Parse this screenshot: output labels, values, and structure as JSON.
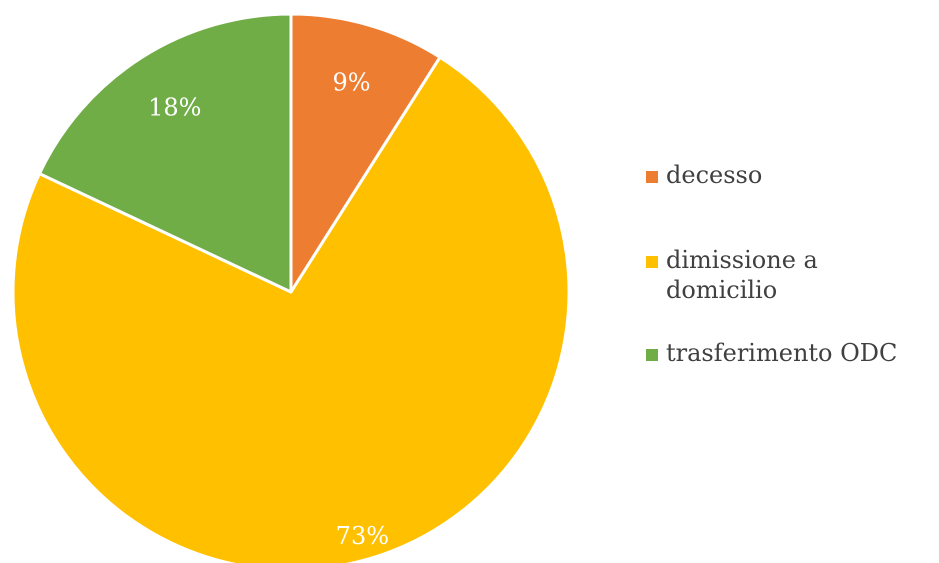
{
  "chart_data": {
    "type": "pie",
    "title": "",
    "categories": [
      "decesso",
      "dimissione a domicilio",
      "trasferimento ODC"
    ],
    "values": [
      9,
      73,
      18
    ],
    "value_labels": [
      "9%",
      "73%",
      "18%"
    ],
    "legend_labels": [
      "decesso",
      "dimissione a\ndomicilio",
      "trasferimento ODC"
    ],
    "colors": [
      "#ED7D31",
      "#FFC000",
      "#70AD47"
    ],
    "start_angle": "12 o'clock",
    "direction": "clockwise",
    "legend_position": "right"
  }
}
